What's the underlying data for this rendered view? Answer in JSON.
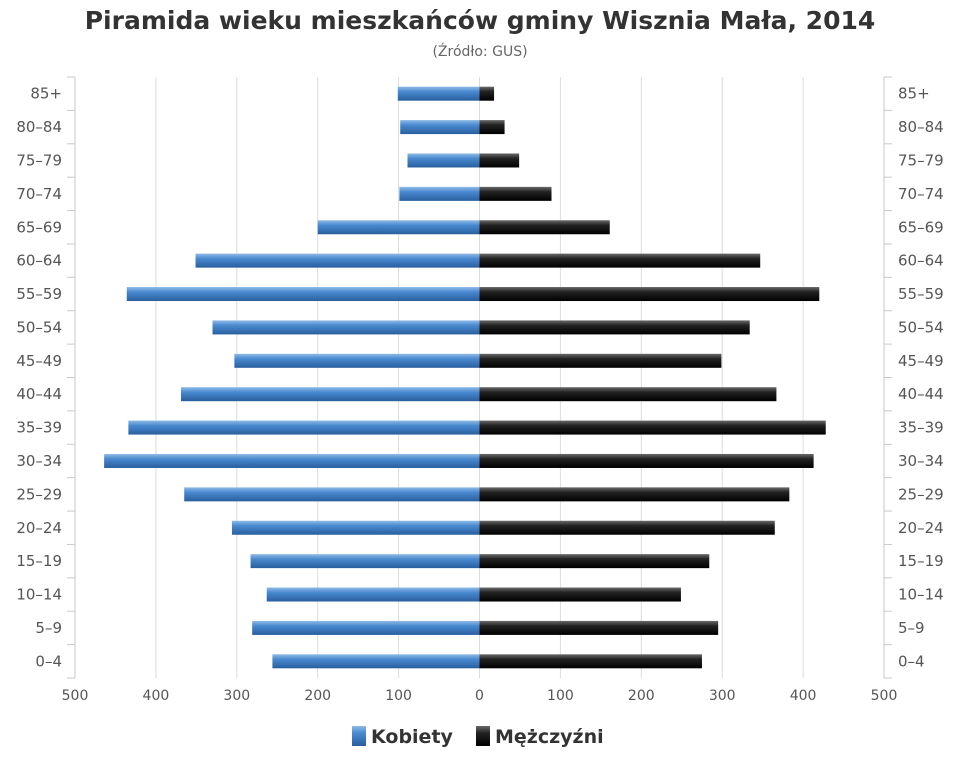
{
  "chart_data": {
    "type": "bar",
    "orientation": "horizontal-population-pyramid",
    "title": "Piramida wieku mieszkańców gminy Wisznia Mała, 2014",
    "subtitle": "(Źródło: GUS)",
    "categories": [
      "85+",
      "80–84",
      "75–79",
      "70–74",
      "65–69",
      "60–64",
      "55–59",
      "50–54",
      "45–49",
      "40–44",
      "35–39",
      "30–34",
      "25–29",
      "20–24",
      "15–19",
      "10–14",
      "5–9",
      "0–4"
    ],
    "series": [
      {
        "name": "Kobiety",
        "color": "#3d7dc0",
        "side": "left",
        "values": [
          101,
          98,
          89,
          99,
          200,
          351,
          436,
          330,
          303,
          369,
          434,
          464,
          365,
          306,
          283,
          263,
          281,
          256
        ]
      },
      {
        "name": "Mężczyźni",
        "color": "#1a1a1a",
        "side": "right",
        "values": [
          18,
          31,
          49,
          89,
          161,
          347,
          420,
          334,
          299,
          367,
          428,
          413,
          383,
          365,
          284,
          249,
          295,
          275
        ]
      }
    ],
    "xlim": [
      -500,
      500
    ],
    "x_ticks": [
      500,
      400,
      300,
      200,
      100,
      0,
      100,
      200,
      300,
      400,
      500
    ],
    "xlabel": "",
    "ylabel": "",
    "grid": "vertical",
    "legend_position": "bottom-center"
  }
}
